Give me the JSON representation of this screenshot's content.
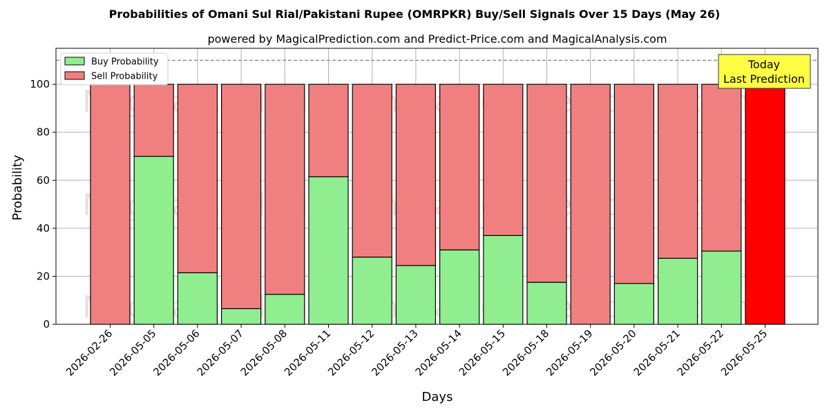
{
  "chart_data": {
    "type": "bar",
    "stacked": true,
    "title": "Probabilities of Omani Sul Rial/Pakistani Rupee (OMRPKR) Buy/Sell Signals Over 15 Days (May 26)",
    "subtitle": "powered by MagicalPrediction.com and Predict-Price.com and MagicalAnalysis.com",
    "xlabel": "Days",
    "ylabel": "Probability",
    "ylim": [
      0,
      115
    ],
    "yticks": [
      0,
      20,
      40,
      60,
      80,
      100
    ],
    "grid": true,
    "legend_position": "top-left",
    "threshold_line": 110,
    "categories": [
      "2026-02-26",
      "2026-05-05",
      "2026-05-06",
      "2026-05-07",
      "2026-05-08",
      "2026-05-11",
      "2026-05-12",
      "2026-05-13",
      "2026-05-14",
      "2026-05-15",
      "2026-05-18",
      "2026-05-19",
      "2026-05-20",
      "2026-05-21",
      "2026-05-22",
      "2026-05-25"
    ],
    "series": [
      {
        "name": "Buy Probability",
        "color": "#90ee90",
        "values": [
          0,
          70,
          21.5,
          6.5,
          12.5,
          61.5,
          28,
          24.5,
          31,
          37,
          17.5,
          0,
          17,
          27.5,
          30.5,
          0
        ]
      },
      {
        "name": "Sell Probability",
        "color": "#f08080",
        "values": [
          100,
          30,
          78.5,
          93.5,
          87.5,
          38.5,
          72,
          75.5,
          69,
          63,
          82.5,
          100,
          83,
          72.5,
          69.5,
          100
        ]
      }
    ],
    "highlight": {
      "index": 15,
      "color": "#ff0000"
    },
    "annotation": {
      "line1": "Today",
      "line2": "Last Prediction",
      "bg": "#ffff44"
    },
    "watermarks": [
      "MagicalAnalysis.com",
      "MagicalPrediction.com"
    ]
  }
}
